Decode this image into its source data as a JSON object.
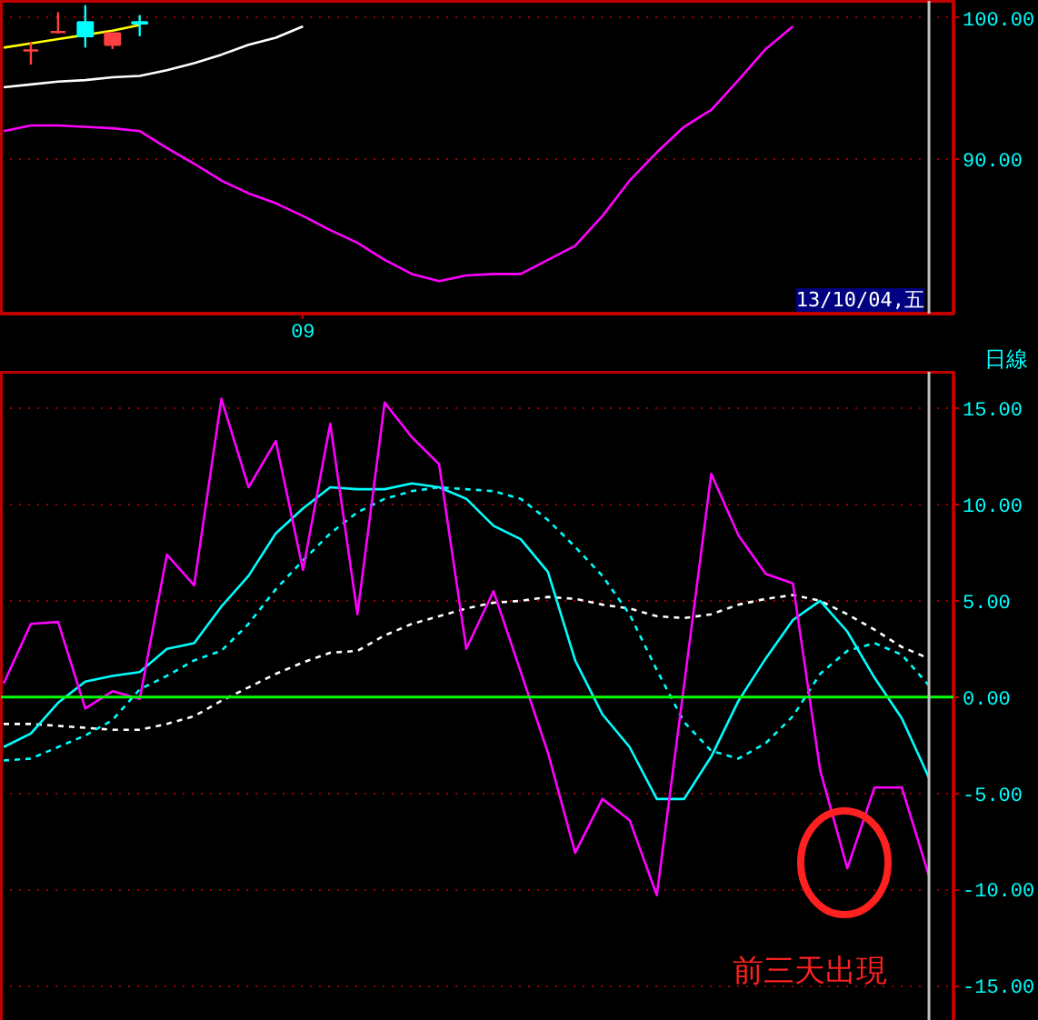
{
  "chart_data": [
    {
      "type": "candlestick",
      "ylim": [
        79.1,
        101.2
      ],
      "categories": [
        null,
        null,
        null,
        null,
        null,
        null,
        null,
        null,
        null,
        null,
        null,
        "09",
        null,
        null,
        null,
        null,
        null,
        null,
        null,
        null,
        null,
        null,
        null,
        null,
        null,
        null,
        null,
        null,
        null,
        null,
        null,
        null,
        null,
        null,
        null
      ],
      "yticks": [
        {
          "value": 90,
          "label": "90.00"
        },
        {
          "value": 100,
          "label": "100.00"
        }
      ],
      "grid": "y",
      "ohlc": [
        null,
        [
          97.7,
          98.3,
          96.7,
          97.7
        ],
        [
          99.0,
          100.4,
          98.9,
          99.0
        ],
        [
          99.7,
          100.9,
          97.9,
          98.7
        ],
        [
          98.1,
          98.9,
          97.8,
          98.9
        ],
        [
          99.7,
          100.2,
          98.7,
          99.6
        ],
        null,
        null,
        null,
        null,
        null,
        null,
        null,
        null,
        null,
        null,
        null,
        null,
        null,
        null,
        null,
        null,
        null,
        null,
        null,
        null,
        null,
        null,
        null,
        null,
        null,
        null,
        null,
        null,
        null
      ],
      "colors": [
        null,
        "#ff4040",
        "#ff4040",
        "#00ffff",
        "#ff4040",
        "#00ffff",
        null,
        null,
        null,
        null,
        null,
        null,
        null,
        null,
        null,
        null,
        null,
        null,
        null,
        null,
        null,
        null,
        null,
        null,
        null,
        null,
        null,
        null,
        null,
        null,
        null,
        null,
        null,
        null,
        null
      ],
      "series": [
        {
          "type": "line",
          "color": "#ff00ff",
          "line_style": "solid",
          "values": [
            92.0,
            92.4,
            92.4,
            92.3,
            92.2,
            92.0,
            90.8,
            89.7,
            88.5,
            87.6,
            86.9,
            86.0,
            85.0,
            84.1,
            82.9,
            81.9,
            81.4,
            81.8,
            81.9,
            81.9,
            82.9,
            83.9,
            86.0,
            88.5,
            90.5,
            92.3,
            93.5,
            95.6,
            97.8,
            99.4,
            null,
            null,
            null,
            null,
            null
          ]
        },
        {
          "type": "line",
          "color": "#ffffff",
          "line_style": "solid",
          "values": [
            95.1,
            95.3,
            95.5,
            95.6,
            95.8,
            95.9,
            96.3,
            96.8,
            97.4,
            98.1,
            98.6,
            99.4,
            null,
            null,
            null,
            null,
            null,
            null,
            null,
            null,
            null,
            null,
            null,
            null,
            null,
            null,
            null,
            null,
            null,
            null,
            null,
            null,
            null,
            null,
            null
          ]
        },
        {
          "type": "line",
          "color": "#ffff00",
          "line_style": "solid",
          "values": [
            97.9,
            98.2,
            98.5,
            98.8,
            99.1,
            99.5,
            null,
            null,
            null,
            null,
            null,
            null,
            null,
            null,
            null,
            null,
            null,
            null,
            null,
            null,
            null,
            null,
            null,
            null,
            null,
            null,
            null,
            null,
            null,
            null,
            null,
            null,
            null,
            null,
            null
          ]
        }
      ],
      "annotations": [
        "13/10/04,五",
        "日線"
      ]
    },
    {
      "type": "line",
      "ylim": [
        -17.4,
        16.9
      ],
      "categories": [
        null,
        null,
        null,
        null,
        null,
        null,
        null,
        null,
        null,
        null,
        null,
        null,
        null,
        null,
        null,
        null,
        null,
        null,
        null,
        null,
        null,
        null,
        null,
        null,
        null,
        null,
        null,
        null,
        null,
        null,
        null,
        null,
        null,
        null,
        null
      ],
      "yticks": [
        {
          "value": -15,
          "label": "-15.00"
        },
        {
          "value": -10,
          "label": "-10.00"
        },
        {
          "value": -5,
          "label": "-5.00"
        },
        {
          "value": 0,
          "label": "0.00"
        },
        {
          "value": 5,
          "label": "5.00"
        },
        {
          "value": 10,
          "label": "10.00"
        },
        {
          "value": 15,
          "label": "15.00"
        }
      ],
      "grid": "y",
      "tick_labels": "y",
      "series": [
        {
          "color": "#ffffff",
          "line_style": "dashed",
          "values": [
            -1.4,
            -1.4,
            -1.5,
            -1.6,
            -1.7,
            -1.7,
            -1.4,
            -1.0,
            -0.2,
            0.5,
            1.2,
            1.8,
            2.3,
            2.4,
            3.2,
            3.8,
            4.2,
            4.6,
            4.9,
            5.0,
            5.2,
            5.1,
            4.8,
            4.6,
            4.2,
            4.1,
            4.3,
            4.8,
            5.1,
            5.3,
            5.0,
            4.3,
            3.5,
            2.6,
            2.0
          ]
        },
        {
          "color": "#00ffff",
          "line_style": "dashed",
          "values": [
            -3.3,
            -3.2,
            -2.6,
            -2.0,
            -1.2,
            0.4,
            1.1,
            1.9,
            2.4,
            3.8,
            5.6,
            7.1,
            8.5,
            9.6,
            10.3,
            10.7,
            10.9,
            10.8,
            10.7,
            10.3,
            9.2,
            7.8,
            6.3,
            4.3,
            1.4,
            -1.3,
            -2.8,
            -3.2,
            -2.4,
            -1.0,
            1.2,
            2.4,
            2.8,
            2.2,
            0.6
          ]
        },
        {
          "color": "#00ffff",
          "line_style": "solid",
          "values": [
            -2.6,
            -1.9,
            -0.3,
            0.8,
            1.1,
            1.3,
            2.5,
            2.8,
            4.7,
            6.3,
            8.5,
            9.8,
            10.9,
            10.8,
            10.8,
            11.1,
            10.9,
            10.3,
            8.9,
            8.2,
            6.5,
            1.9,
            -0.9,
            -2.6,
            -5.3,
            -5.3,
            -3.1,
            -0.2,
            2.0,
            4.0,
            5.0,
            3.4,
            1.0,
            -1.1,
            -4.2
          ]
        },
        {
          "color": "#ff00ff",
          "line_style": "solid",
          "values": [
            0.7,
            3.8,
            3.9,
            -0.6,
            0.3,
            -0.1,
            7.4,
            5.8,
            15.5,
            10.9,
            13.3,
            6.6,
            14.2,
            4.3,
            15.3,
            13.5,
            12.1,
            2.5,
            5.5,
            1.3,
            -2.9,
            -8.1,
            -5.3,
            -6.4,
            -10.3,
            0.6,
            11.6,
            8.4,
            6.4,
            5.9,
            -3.8,
            -8.9,
            -4.7,
            -4.7,
            -9.3
          ]
        }
      ],
      "ref_lines": [
        {
          "axis": "y",
          "value": 0,
          "color": "#00ff00"
        }
      ],
      "annotations": [
        "前三天出現"
      ]
    }
  ]
}
